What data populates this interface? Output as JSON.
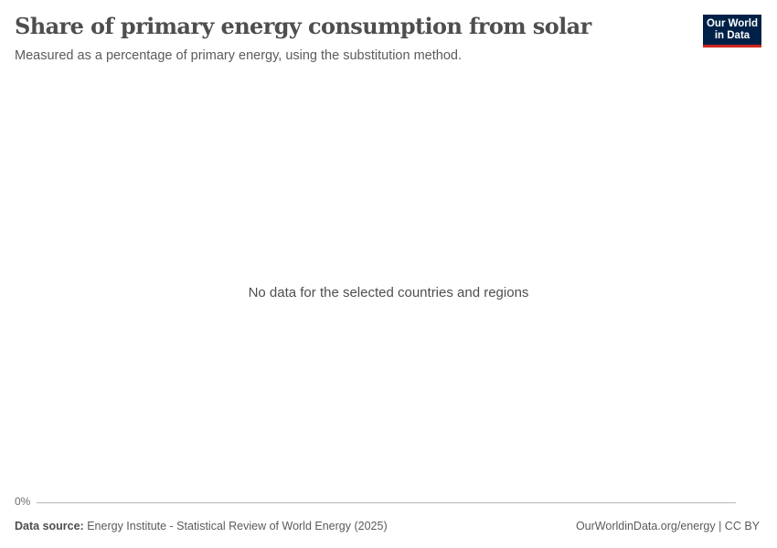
{
  "header": {
    "title": "Share of primary energy consumption from solar",
    "subtitle": "Measured as a percentage of primary energy, using the substitution method.",
    "logo": {
      "line1": "Our World",
      "line2": "in Data",
      "colors": {
        "background": "#002147",
        "accent": "#ce261e"
      }
    }
  },
  "chart_data": {
    "type": "line",
    "title": "Share of primary energy consumption from solar",
    "subtitle": "Measured as a percentage of primary energy, using the substitution method.",
    "y_ticks": [
      "0%"
    ],
    "series": [],
    "message": "No data for the selected countries and regions",
    "grid": false
  },
  "footer": {
    "source_label": "Data source:",
    "source_text": "Energy Institute - Statistical Review of World Energy (2025)",
    "credit_link": "OurWorldinData.org/energy",
    "separator": "|",
    "license": "CC BY"
  }
}
